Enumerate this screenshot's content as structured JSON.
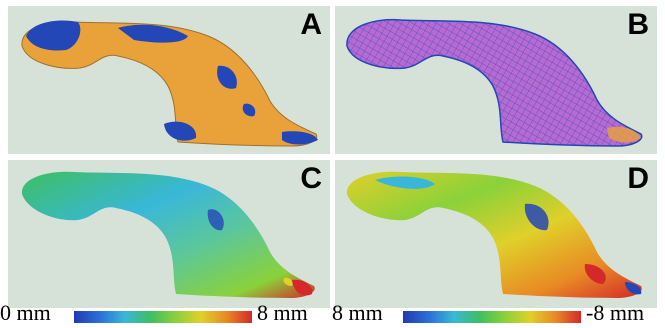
{
  "panels": [
    {
      "id": "A",
      "label": "A",
      "rendering": "orange surface with blue overlap patches"
    },
    {
      "id": "B",
      "label": "B",
      "rendering": "orange surface with blue wireframe mesh"
    },
    {
      "id": "C",
      "label": "C",
      "rendering": "distance color map"
    },
    {
      "id": "D",
      "label": "D",
      "rendering": "signed distance color map"
    }
  ],
  "colorbars": {
    "left": {
      "min_label": "0 mm",
      "max_label": "8 mm"
    },
    "right": {
      "min_label": "8 mm",
      "max_label": "-8 mm"
    }
  },
  "colors": {
    "panel_bg": "#d6e2d8",
    "surface_orange": "#e9a23a",
    "overlap_blue": "#2447b8",
    "mesh_purple": "#b86ad0"
  }
}
